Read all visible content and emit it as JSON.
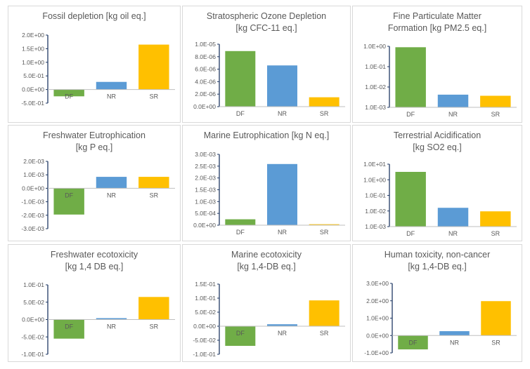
{
  "colors": {
    "DF": "#70AD47",
    "NR": "#5B9BD5",
    "SR": "#FFC000",
    "axis": "#1F3864",
    "text": "#595959",
    "border": "#D9D9D9"
  },
  "chart_data": [
    {
      "type": "bar",
      "title_lines": [
        "Fossil depletion [kg oil eq.]"
      ],
      "scale": "linear",
      "categories": [
        "DF",
        "NR",
        "SR"
      ],
      "values": [
        -0.25,
        0.28,
        1.65
      ],
      "ylim": [
        -0.5,
        2.0
      ],
      "yticks": [
        -0.5,
        0.0,
        0.5,
        1.0,
        1.5,
        2.0
      ],
      "ytick_labels": [
        "-5.0E-01",
        "0.0E+00",
        "5.0E-01",
        "1.0E+00",
        "1.5E+00",
        "2.0E+00"
      ]
    },
    {
      "type": "bar",
      "title_lines": [
        "Stratospheric Ozone Depletion",
        "[kg CFC-11 eq.]"
      ],
      "scale": "linear",
      "categories": [
        "DF",
        "NR",
        "SR"
      ],
      "values": [
        8.9e-06,
        6.6e-06,
        1.5e-06
      ],
      "ylim": [
        0,
        1e-05
      ],
      "yticks": [
        0,
        2e-06,
        4e-06,
        6e-06,
        8e-06,
        1e-05
      ],
      "ytick_labels": [
        "0.0E+00",
        "2.0E-06",
        "4.0E-06",
        "6.0E-06",
        "8.0E-06",
        "1.0E-05"
      ]
    },
    {
      "type": "bar",
      "title_lines": [
        "Fine Particulate Matter",
        "Formation [kg PM2.5 eq.]"
      ],
      "scale": "log",
      "categories": [
        "DF",
        "NR",
        "SR"
      ],
      "values": [
        0.9,
        0.0042,
        0.0037
      ],
      "ylim": [
        0.001,
        1.0
      ],
      "yticks": [
        0.001,
        0.01,
        0.1,
        1.0
      ],
      "ytick_labels": [
        "1.0E-03",
        "1.0E-02",
        "1.0E-01",
        "1.0E+00"
      ]
    },
    {
      "type": "bar",
      "title_lines": [
        "Freshwater Eutrophication",
        "[kg P eq.]"
      ],
      "scale": "linear",
      "categories": [
        "DF",
        "NR",
        "SR"
      ],
      "values": [
        -0.00195,
        0.00085,
        0.00085
      ],
      "ylim": [
        -0.003,
        0.002
      ],
      "yticks": [
        -0.003,
        -0.002,
        -0.001,
        0.0,
        0.001,
        0.002
      ],
      "ytick_labels": [
        "-3.0E-03",
        "-2.0E-03",
        "-1.0E-03",
        "0.0E+00",
        "1.0E-03",
        "2.0E-03"
      ]
    },
    {
      "type": "bar",
      "title_lines": [
        "Marine Eutrophication [kg N eq.]"
      ],
      "scale": "linear",
      "categories": [
        "DF",
        "NR",
        "SR"
      ],
      "values": [
        0.00025,
        0.00259,
        4e-05
      ],
      "ylim": [
        0,
        0.003
      ],
      "yticks": [
        0,
        0.0005,
        0.001,
        0.0015,
        0.002,
        0.0025,
        0.003
      ],
      "ytick_labels": [
        "0.0E+00",
        "5.0E-04",
        "1.0E-03",
        "1.5E-03",
        "2.0E-03",
        "2.5E-03",
        "3.0E-03"
      ]
    },
    {
      "type": "bar",
      "title_lines": [
        "Terrestrial Acidification",
        "[kg SO2 eq.]"
      ],
      "scale": "log",
      "categories": [
        "DF",
        "NR",
        "SR"
      ],
      "values": [
        3.2,
        0.016,
        0.0095
      ],
      "ylim": [
        0.001,
        10.0
      ],
      "yticks": [
        0.001,
        0.01,
        0.1,
        1.0,
        10.0
      ],
      "ytick_labels": [
        "1.0E-03",
        "1.0E-02",
        "1.0E-01",
        "1.0E+00",
        "1.0E+01"
      ]
    },
    {
      "type": "bar",
      "title_lines": [
        "Freshwater ecotoxicity",
        "[kg 1,4 DB eq.]"
      ],
      "scale": "linear",
      "categories": [
        "DF",
        "NR",
        "SR"
      ],
      "values": [
        -0.055,
        0.004,
        0.065
      ],
      "ylim": [
        -0.1,
        0.1
      ],
      "yticks": [
        -0.1,
        -0.05,
        0.0,
        0.05,
        0.1
      ],
      "ytick_labels": [
        "-1.0E-01",
        "-5.0E-02",
        "0.0E+00",
        "5.0E-02",
        "1.0E-01"
      ]
    },
    {
      "type": "bar",
      "title_lines": [
        "Marine ecotoxicity",
        "[kg 1,4-DB eq.]"
      ],
      "scale": "linear",
      "categories": [
        "DF",
        "NR",
        "SR"
      ],
      "values": [
        -0.07,
        0.007,
        0.092
      ],
      "ylim": [
        -0.1,
        0.15
      ],
      "yticks": [
        -0.1,
        -0.05,
        0.0,
        0.05,
        0.1,
        0.15
      ],
      "ytick_labels": [
        "-1.0E-01",
        "-5.0E-02",
        "0.0E+00",
        "5.0E-02",
        "1.0E-01",
        "1.5E-01"
      ]
    },
    {
      "type": "bar",
      "title_lines": [
        "Human toxicity, non-cancer",
        "[kg 1,4-DB eq.]"
      ],
      "scale": "linear",
      "categories": [
        "DF",
        "NR",
        "SR"
      ],
      "values": [
        -0.8,
        0.25,
        1.98
      ],
      "ylim": [
        -1.0,
        3.0
      ],
      "yticks": [
        -1.0,
        0.0,
        1.0,
        2.0,
        3.0
      ],
      "ytick_labels": [
        "-1.0E+00",
        "0.0E+00",
        "1.0E+00",
        "2.0E+00",
        "3.0E+00"
      ]
    }
  ]
}
